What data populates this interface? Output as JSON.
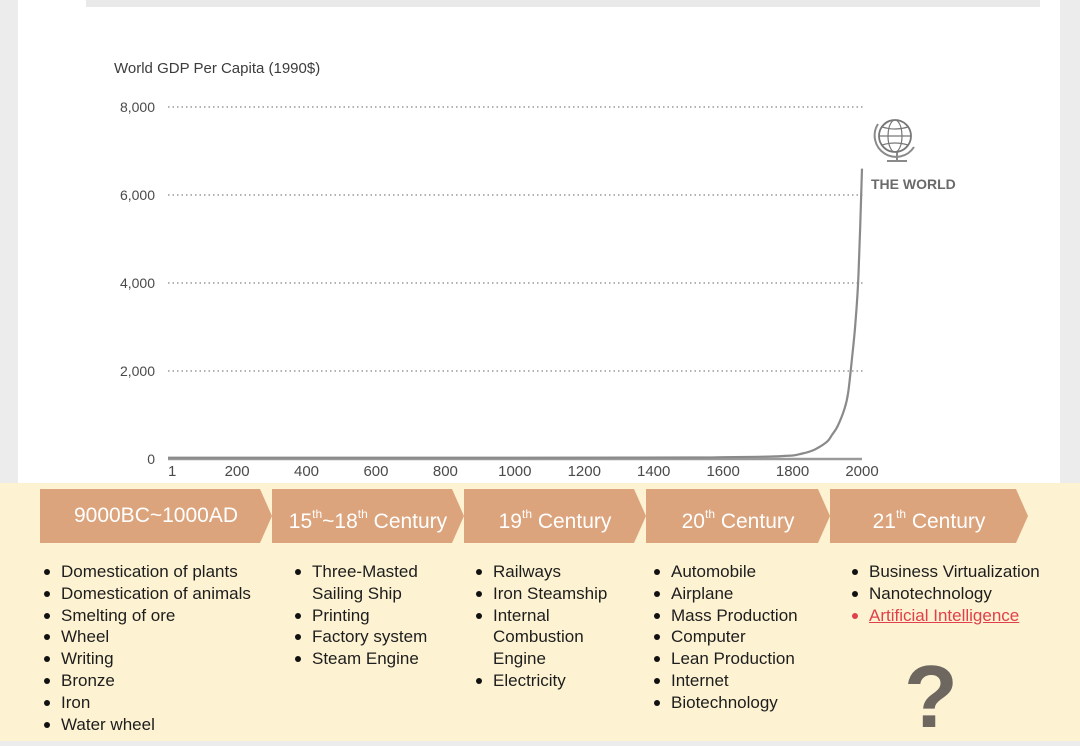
{
  "chart_data": {
    "type": "line",
    "title": "",
    "ylabel": "World GDP Per Capita (1990$)",
    "xlabel": "",
    "ylim": [
      0,
      8000
    ],
    "xlim": [
      1,
      2000
    ],
    "y_ticks": [
      0,
      2000,
      4000,
      6000,
      8000
    ],
    "y_tick_labels": [
      "0",
      "2,000",
      "4,000",
      "6,000",
      "8,000"
    ],
    "x_ticks": [
      1,
      200,
      400,
      600,
      800,
      1000,
      1200,
      1400,
      1600,
      1800,
      2000
    ],
    "x_tick_labels": [
      "1",
      "200",
      "400",
      "600",
      "800",
      "1000",
      "1200",
      "1400",
      "1600",
      "1800",
      "2000"
    ],
    "grid": "horizontal dotted",
    "series": [
      {
        "name": "THE WORLD",
        "x": [
          1,
          1000,
          1500,
          1600,
          1700,
          1750,
          1800,
          1820,
          1850,
          1870,
          1900,
          1913,
          1930,
          1950,
          1960,
          1970,
          1980,
          1990,
          2000
        ],
        "y": [
          30,
          30,
          35,
          40,
          50,
          60,
          80,
          110,
          170,
          240,
          400,
          540,
          750,
          1150,
          1500,
          2200,
          3000,
          4200,
          6600
        ]
      }
    ],
    "annotation": "THE WORLD",
    "annotation_icon": "globe-icon"
  },
  "eras": [
    {
      "main": "9000BC~1000AD",
      "items": [
        "Domestication of plants",
        "Domestication of animals",
        "Smelting of ore",
        "Wheel",
        "Writing",
        "Bronze",
        "Iron",
        "Water wheel"
      ]
    },
    {
      "pre": "15",
      "sup1": "th",
      "mid": "~18",
      "sup2": "th",
      "post": " Century",
      "items": [
        "Three-Masted Sailing Ship",
        "Printing",
        "Factory system",
        "Steam Engine"
      ]
    },
    {
      "pre": "19",
      "sup1": "th",
      "post": " Century",
      "items": [
        "Railways",
        "Iron Steamship",
        "Internal Combustion Engine",
        "Electricity"
      ]
    },
    {
      "pre": "20",
      "sup1": "th",
      "post": " Century",
      "items": [
        "Automobile",
        "Airplane",
        "Mass Production",
        "Computer",
        "Lean Production",
        "Internet",
        "Biotechnology"
      ]
    },
    {
      "pre": "21",
      "sup1": "th",
      "post": " Century",
      "items": [
        "Business Virtualization",
        "Nanotechnology",
        "Artificial Intelligence"
      ]
    }
  ],
  "question": "?",
  "colors": {
    "band": "#dca47c",
    "panel": "#fdf3d3",
    "curve": "#8a8a8a",
    "ai_highlight": "#e0404b",
    "question": "#6e675f"
  }
}
